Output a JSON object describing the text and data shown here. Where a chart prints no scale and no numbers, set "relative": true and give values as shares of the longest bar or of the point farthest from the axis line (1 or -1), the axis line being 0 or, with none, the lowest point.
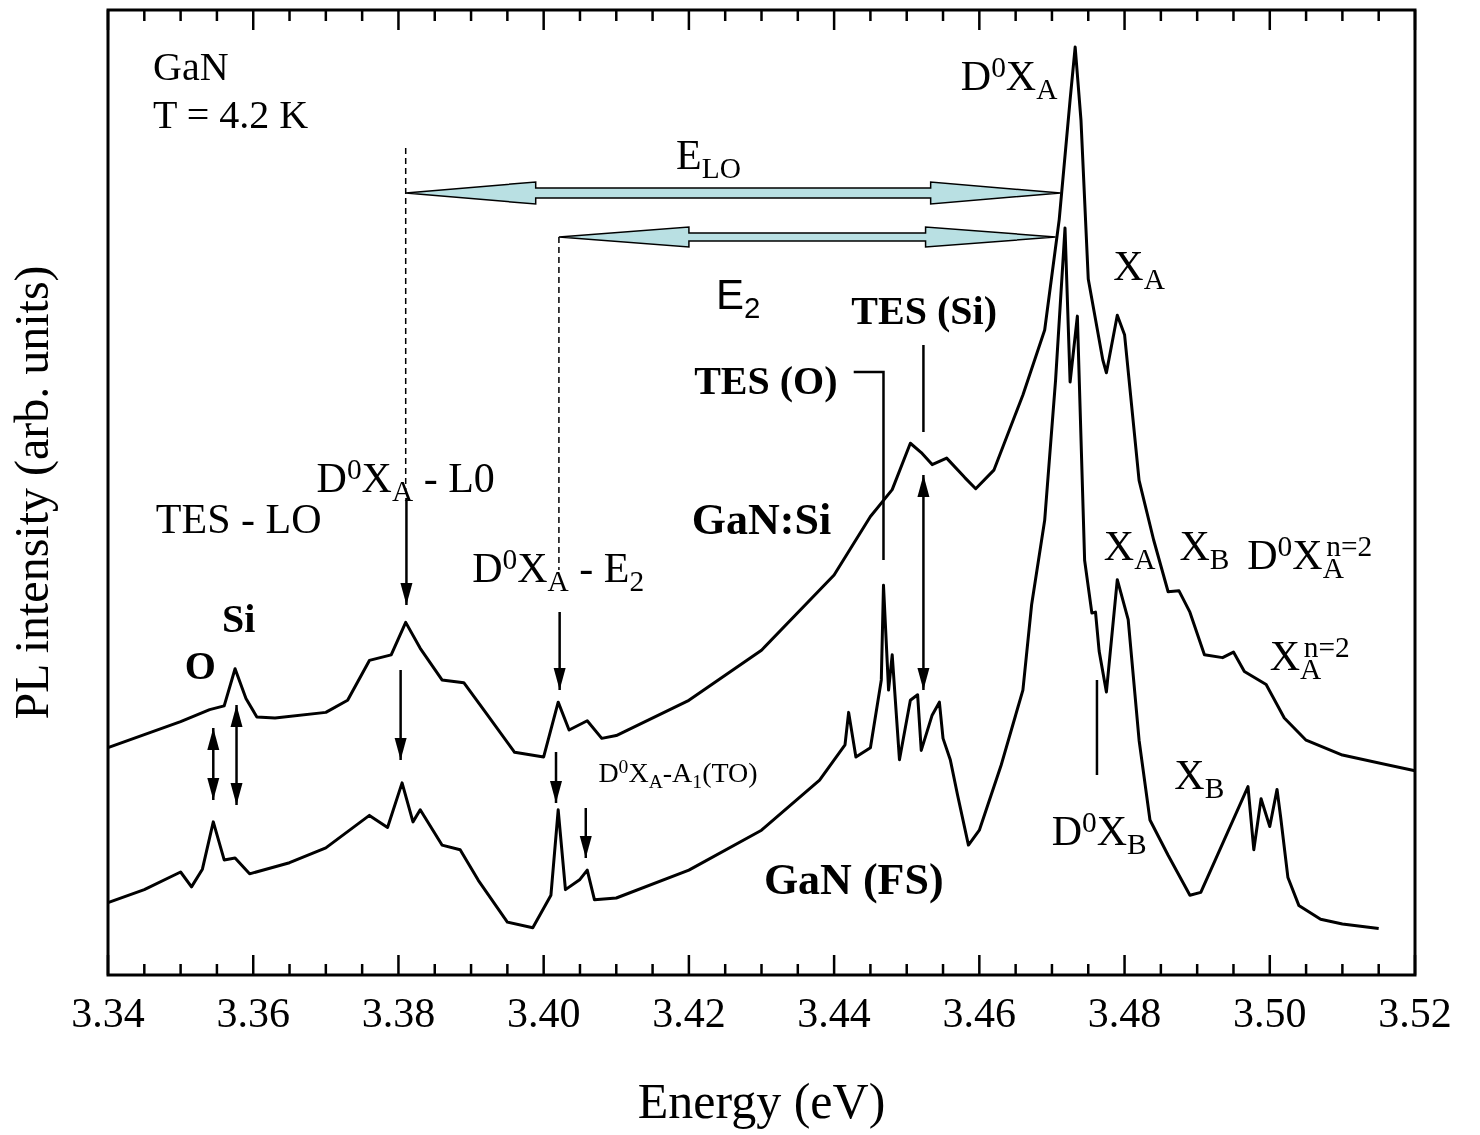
{
  "chart_data": {
    "type": "line",
    "relative": true,
    "xlabel": "Energy (eV)",
    "ylabel": "PL intensity (arb. units)",
    "xlim": [
      3.34,
      3.52
    ],
    "xticks": [
      {
        "value": 3.34,
        "label": "3.34"
      },
      {
        "value": 3.345,
        "label": null
      },
      {
        "value": 3.35,
        "label": null
      },
      {
        "value": 3.355,
        "label": null
      },
      {
        "value": 3.36,
        "label": "3.36"
      },
      {
        "value": 3.365,
        "label": null
      },
      {
        "value": 3.37,
        "label": null
      },
      {
        "value": 3.375,
        "label": null
      },
      {
        "value": 3.38,
        "label": "3.38"
      },
      {
        "value": 3.385,
        "label": null
      },
      {
        "value": 3.39,
        "label": null
      },
      {
        "value": 3.395,
        "label": null
      },
      {
        "value": 3.4,
        "label": "3.40"
      },
      {
        "value": 3.405,
        "label": null
      },
      {
        "value": 3.41,
        "label": null
      },
      {
        "value": 3.415,
        "label": null
      },
      {
        "value": 3.42,
        "label": "3.42"
      },
      {
        "value": 3.425,
        "label": null
      },
      {
        "value": 3.43,
        "label": null
      },
      {
        "value": 3.435,
        "label": null
      },
      {
        "value": 3.44,
        "label": "3.44"
      },
      {
        "value": 3.445,
        "label": null
      },
      {
        "value": 3.45,
        "label": null
      },
      {
        "value": 3.455,
        "label": null
      },
      {
        "value": 3.46,
        "label": "3.46"
      },
      {
        "value": 3.465,
        "label": null
      },
      {
        "value": 3.47,
        "label": null
      },
      {
        "value": 3.475,
        "label": null
      },
      {
        "value": 3.48,
        "label": "3.48"
      },
      {
        "value": 3.485,
        "label": null
      },
      {
        "value": 3.49,
        "label": null
      },
      {
        "value": 3.495,
        "label": null
      },
      {
        "value": 3.5,
        "label": "3.50"
      },
      {
        "value": 3.505,
        "label": null
      },
      {
        "value": 3.51,
        "label": null
      },
      {
        "value": 3.515,
        "label": null
      },
      {
        "value": 3.52,
        "label": "3.52"
      }
    ],
    "marker": "none",
    "line_style": "solid",
    "series": [
      {
        "name": "GaN:Si",
        "color": "#000000",
        "x": [
          3.34,
          3.345,
          3.35,
          3.354,
          3.356,
          3.3575,
          3.359,
          3.3605,
          3.363,
          3.37,
          3.373,
          3.376,
          3.379,
          3.381,
          3.383,
          3.386,
          3.389,
          3.392,
          3.396,
          3.4,
          3.402,
          3.4035,
          3.406,
          3.408,
          3.41,
          3.42,
          3.43,
          3.44,
          3.445,
          3.448,
          3.4505,
          3.452,
          3.4535,
          3.4555,
          3.458,
          3.4595,
          3.462,
          3.466,
          3.469,
          3.471,
          3.4725,
          3.4732,
          3.474,
          3.475,
          3.477,
          3.4775,
          3.479,
          3.48,
          3.482,
          3.484,
          3.486,
          3.4875,
          3.489,
          3.491,
          3.4935,
          3.495,
          3.4965,
          3.4995,
          3.502,
          3.505,
          3.51,
          3.52
        ],
        "values": [
          0.245,
          0.259,
          0.273,
          0.286,
          0.29,
          0.33,
          0.298,
          0.278,
          0.277,
          0.283,
          0.296,
          0.339,
          0.345,
          0.38,
          0.352,
          0.318,
          0.315,
          0.283,
          0.24,
          0.235,
          0.294,
          0.264,
          0.274,
          0.255,
          0.258,
          0.296,
          0.35,
          0.431,
          0.494,
          0.523,
          0.573,
          0.563,
          0.55,
          0.557,
          0.536,
          0.524,
          0.544,
          0.625,
          0.695,
          0.814,
          0.943,
          1.0,
          0.921,
          0.75,
          0.663,
          0.649,
          0.711,
          0.69,
          0.533,
          0.469,
          0.413,
          0.414,
          0.391,
          0.345,
          0.342,
          0.348,
          0.327,
          0.313,
          0.277,
          0.253,
          0.237,
          0.22
        ]
      },
      {
        "name": "GaN (FS)",
        "color": "#000000",
        "x": [
          3.34,
          3.345,
          3.35,
          3.3515,
          3.353,
          3.3545,
          3.356,
          3.3575,
          3.3595,
          3.365,
          3.37,
          3.376,
          3.3785,
          3.3805,
          3.382,
          3.383,
          3.386,
          3.3885,
          3.391,
          3.395,
          3.3985,
          3.401,
          3.402,
          3.403,
          3.405,
          3.406,
          3.407,
          3.41,
          3.42,
          3.43,
          3.438,
          3.4415,
          3.442,
          3.443,
          3.445,
          3.4465,
          3.4468,
          3.4475,
          3.448,
          3.449,
          3.4505,
          3.4515,
          3.452,
          3.4535,
          3.4545,
          3.455,
          3.456,
          3.457,
          3.4585,
          3.46,
          3.463,
          3.466,
          3.4672,
          3.469,
          3.4705,
          3.4718,
          3.4725,
          3.4735,
          3.4745,
          3.4755,
          3.476,
          3.4765,
          3.4775,
          3.479,
          3.4805,
          3.482,
          3.4835,
          3.486,
          3.489,
          3.4905,
          3.4925,
          3.497,
          3.4978,
          3.4988,
          3.5,
          3.501,
          3.5015,
          3.5025,
          3.504,
          3.507,
          3.51,
          3.515
        ],
        "values": [
          0.078,
          0.092,
          0.111,
          0.095,
          0.114,
          0.165,
          0.124,
          0.126,
          0.109,
          0.121,
          0.137,
          0.172,
          0.159,
          0.207,
          0.165,
          0.178,
          0.14,
          0.135,
          0.102,
          0.057,
          0.051,
          0.086,
          0.178,
          0.092,
          0.103,
          0.113,
          0.081,
          0.083,
          0.113,
          0.156,
          0.21,
          0.248,
          0.283,
          0.235,
          0.245,
          0.318,
          0.42,
          0.307,
          0.345,
          0.232,
          0.296,
          0.302,
          0.242,
          0.28,
          0.294,
          0.255,
          0.232,
          0.194,
          0.14,
          0.156,
          0.226,
          0.307,
          0.399,
          0.49,
          0.641,
          0.805,
          0.639,
          0.71,
          0.447,
          0.39,
          0.391,
          0.349,
          0.305,
          0.426,
          0.383,
          0.253,
          0.167,
          0.129,
          0.086,
          0.089,
          0.124,
          0.203,
          0.135,
          0.19,
          0.16,
          0.2,
          0.17,
          0.105,
          0.075,
          0.06,
          0.055,
          0.05
        ]
      }
    ],
    "annotations": [
      "GaN",
      "T = 4.2 K",
      "D$^{0}$X$_{A}$",
      "X$_{A}$",
      "TES (Si)",
      "TES (O)",
      "D$^{0}$X$_{A}$ - L0",
      "TES - LO",
      "D$^{0}$X$_{A}$ - E$_{2}$",
      "Si",
      "O",
      "D$^{0}$X$_{A}$-A$_{1}$(TO)",
      "X$_{A}$",
      "X$_{B}$",
      "D$^{0}$X$_{A}$$^{n=2}$",
      "X$_{A}$$^{n=2}$",
      "X$_{B}$",
      "D$^{0}$X$_{B}$",
      "E$_{LO}$",
      "E$_{2}$"
    ]
  }
}
